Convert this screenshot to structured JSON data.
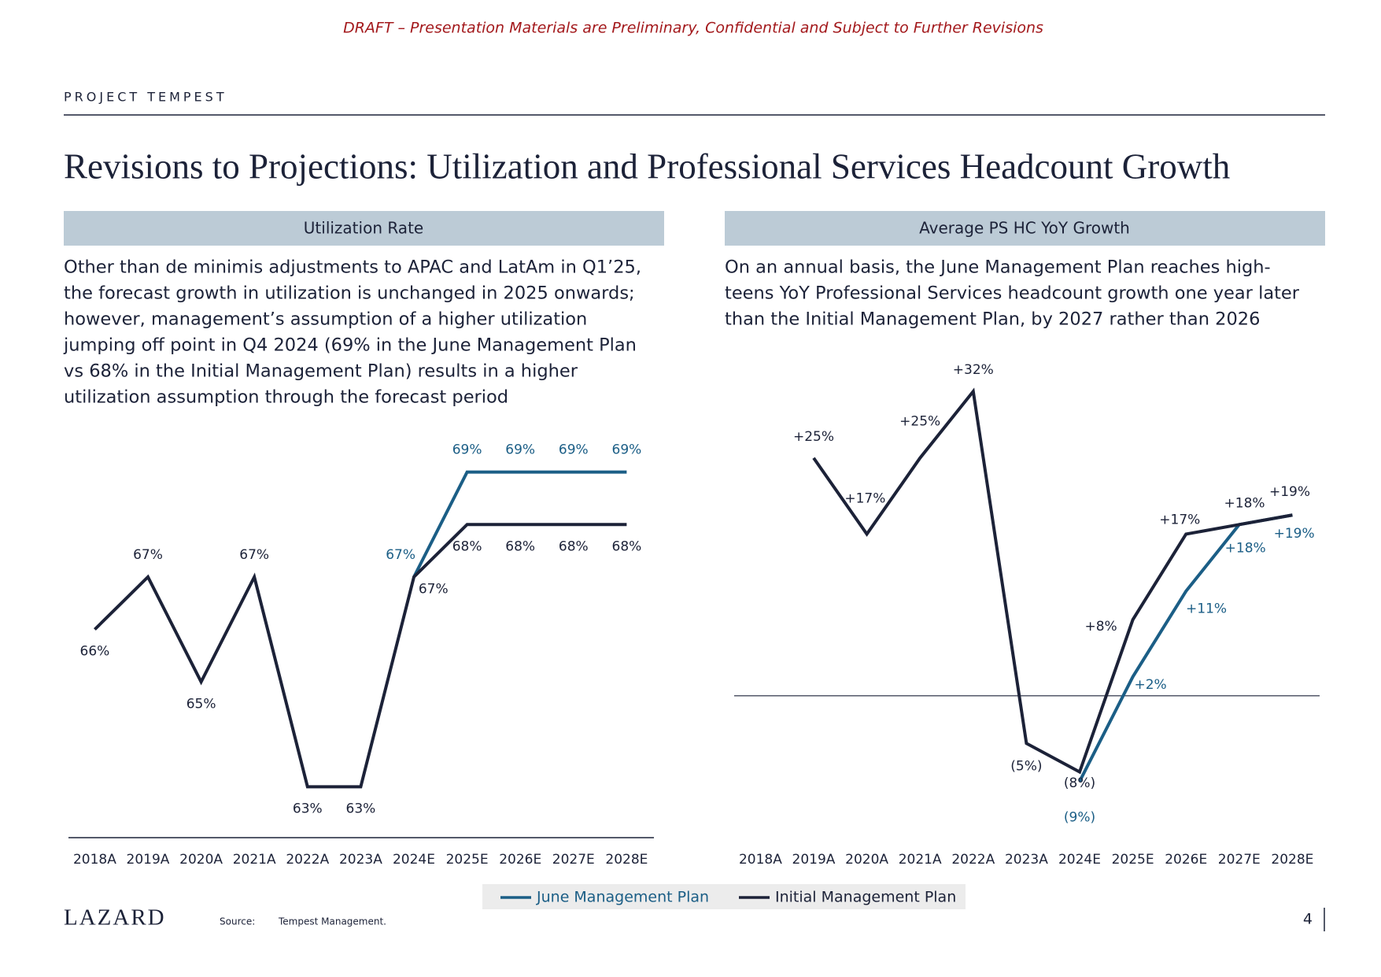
{
  "banner": "DRAFT – Presentation Materials are Preliminary, Confidential and Subject to Further Revisions",
  "header": {
    "project": "PROJECT TEMPEST",
    "title": "Revisions to Projections: Utilization and Professional Services Headcount Growth"
  },
  "chart_data": [
    {
      "type": "line",
      "title": "Utilization Rate",
      "description": [
        "Other than de minimis adjustments to APAC and LatAm in Q1’25,",
        "the forecast growth in utilization is unchanged in 2025 onwards;",
        "however, management’s assumption of a higher utilization",
        "jumping off point in Q4 2024 (69% in the June Management Plan",
        "vs 68% in the Initial Management Plan) results in a higher",
        "utilization assumption through the forecast period"
      ],
      "categories": [
        "2018A",
        "2019A",
        "2020A",
        "2021A",
        "2022A",
        "2023A",
        "2024E",
        "2025E",
        "2026E",
        "2027E",
        "2028E"
      ],
      "ylim": [
        62,
        70
      ],
      "series": [
        {
          "name": "June Management Plan",
          "color": "#1b5e86",
          "values": [
            null,
            null,
            null,
            null,
            null,
            null,
            67,
            69,
            69,
            69,
            69
          ],
          "value_labels": [
            null,
            null,
            null,
            null,
            null,
            null,
            "67%",
            "69%",
            "69%",
            "69%",
            "69%"
          ]
        },
        {
          "name": "Initial Management Plan",
          "color": "#1c2238",
          "values": [
            66,
            67,
            65,
            67,
            63,
            63,
            67,
            68,
            68,
            68,
            68
          ],
          "value_labels": [
            "66%",
            "67%",
            "65%",
            "67%",
            "63%",
            "63%",
            "67%",
            "68%",
            "68%",
            "68%",
            "68%"
          ]
        }
      ]
    },
    {
      "type": "line",
      "title": "Average PS HC YoY Growth",
      "description": [
        "On an annual basis, the June Management Plan reaches high-",
        "teens YoY Professional Services headcount growth one year later",
        "than the Initial Management Plan, by 2027 rather than 2026"
      ],
      "categories": [
        "2018A",
        "2019A",
        "2020A",
        "2021A",
        "2022A",
        "2023A",
        "2024E",
        "2025E",
        "2026E",
        "2027E",
        "2028E"
      ],
      "ylim": [
        -14,
        34
      ],
      "series": [
        {
          "name": "June Management Plan",
          "color": "#1b5e86",
          "values": [
            null,
            null,
            null,
            null,
            null,
            null,
            -9,
            2,
            11,
            18,
            19
          ],
          "value_labels": [
            null,
            null,
            null,
            null,
            null,
            null,
            "(9%)",
            "+2%",
            "+11%",
            "+18%",
            "+19%"
          ]
        },
        {
          "name": "Initial Management Plan",
          "color": "#1c2238",
          "values": [
            null,
            25,
            17,
            25,
            32,
            -5,
            -8,
            8,
            17,
            18,
            19
          ],
          "value_labels": [
            null,
            "+25%",
            "+17%",
            "+25%",
            "+32%",
            "(5%)",
            "(8%)",
            "+8%",
            "+17%",
            "+18%",
            "+19%"
          ]
        }
      ]
    }
  ],
  "footer": {
    "logo": "LAZARD",
    "source_label": "Source:",
    "source": "Tempest Management.",
    "page": 4
  }
}
